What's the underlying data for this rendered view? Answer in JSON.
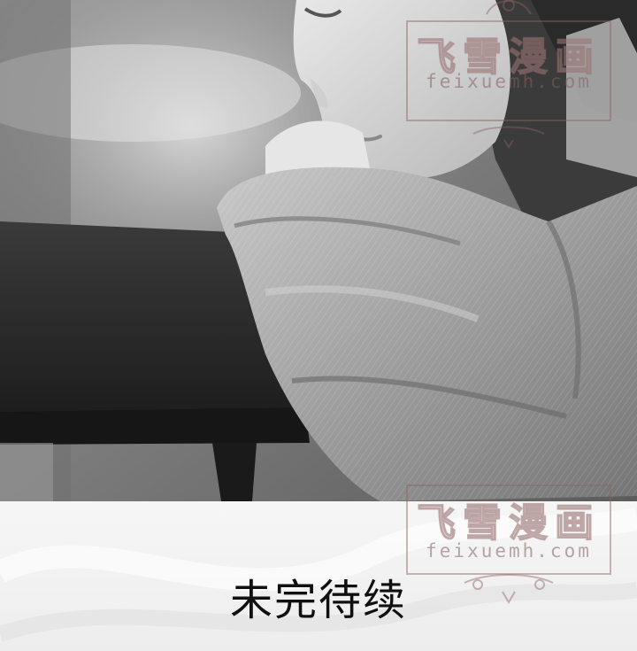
{
  "photo": {
    "description_icon": "photo-icon"
  },
  "footer": {
    "text": "未完待续"
  },
  "watermarks": [
    {
      "title": "飞雪漫画",
      "url": "feixuemh.com"
    },
    {
      "title": "飞雪漫画",
      "url": "feixuemh.com"
    }
  ]
}
